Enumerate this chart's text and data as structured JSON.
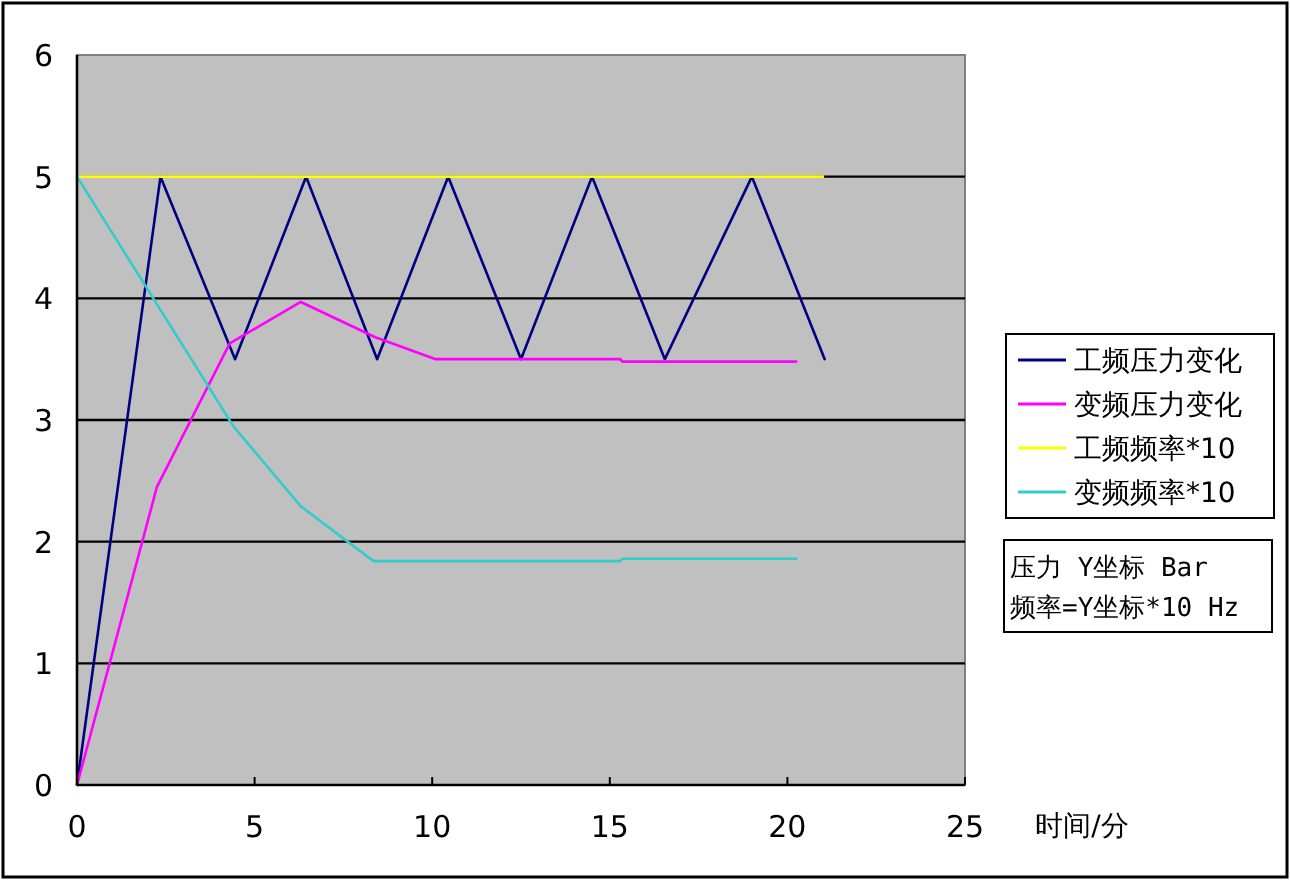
{
  "chart_data": {
    "type": "line",
    "xlabel": "时间/分",
    "xlim": [
      0,
      25
    ],
    "xticks": [
      0,
      5,
      10,
      15,
      20,
      25
    ],
    "ylim": [
      0,
      6
    ],
    "yticks": [
      0,
      1,
      2,
      3,
      4,
      5,
      6
    ],
    "grid": "y",
    "legend": "right",
    "series": [
      {
        "name": "工频压力变化",
        "color": "#000080",
        "x": [
          0,
          2.35,
          4.45,
          6.45,
          8.45,
          10.45,
          12.5,
          14.5,
          16.55,
          19,
          21.05
        ],
        "values": [
          0,
          5,
          3.5,
          5,
          3.5,
          5,
          3.5,
          5,
          3.5,
          5,
          3.5
        ]
      },
      {
        "name": "变频压力变化",
        "color": "#ff00ff",
        "x": [
          0,
          2.25,
          4.3,
          6.3,
          8.4,
          10.1,
          15.3,
          15.35,
          20.25
        ],
        "values": [
          0,
          2.45,
          3.63,
          3.97,
          3.68,
          3.5,
          3.5,
          3.48,
          3.48
        ]
      },
      {
        "name": "工频频率*10",
        "color": "#ffff00",
        "x": [
          0,
          21
        ],
        "values": [
          5,
          5
        ]
      },
      {
        "name": "变频频率*10",
        "color": "#33cccc",
        "x": [
          0,
          4.4,
          6.3,
          8.35,
          15.3,
          15.35,
          20.25
        ],
        "values": [
          5,
          2.95,
          2.29,
          1.84,
          1.84,
          1.86,
          1.86
        ]
      }
    ],
    "annotations": [
      "压力 Y坐标 Bar",
      "频率=Y坐标*10 Hz"
    ]
  }
}
